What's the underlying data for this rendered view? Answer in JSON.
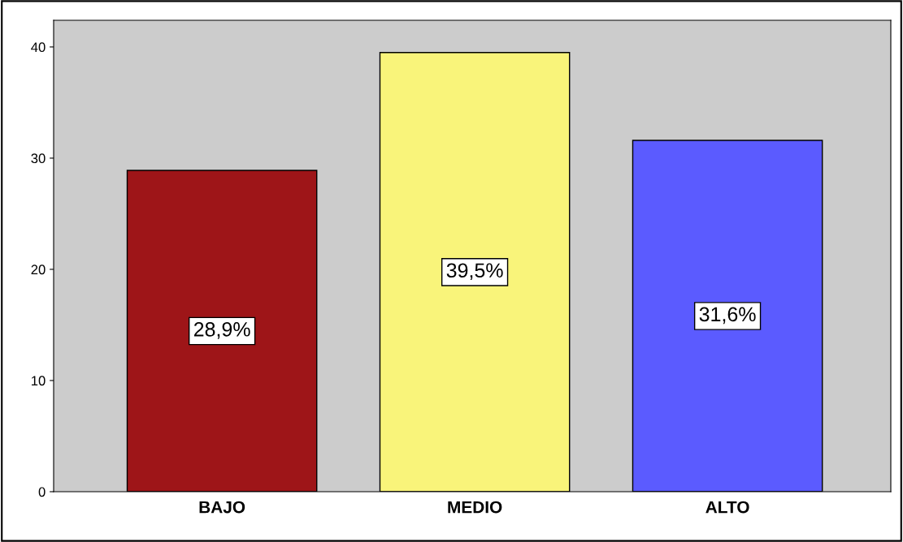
{
  "chart_data": {
    "type": "bar",
    "categories": [
      "BAJO",
      "MEDIO",
      "ALTO"
    ],
    "values": [
      28.9,
      39.5,
      31.6
    ],
    "colors": [
      "#9e1518",
      "#f9f47a",
      "#5b5bff"
    ],
    "value_labels": [
      "28,9%",
      "39,5%",
      "31,6%"
    ],
    "ylim": [
      0,
      42.4
    ],
    "yticks": [
      0,
      10,
      20,
      30,
      40
    ],
    "grid": false
  }
}
